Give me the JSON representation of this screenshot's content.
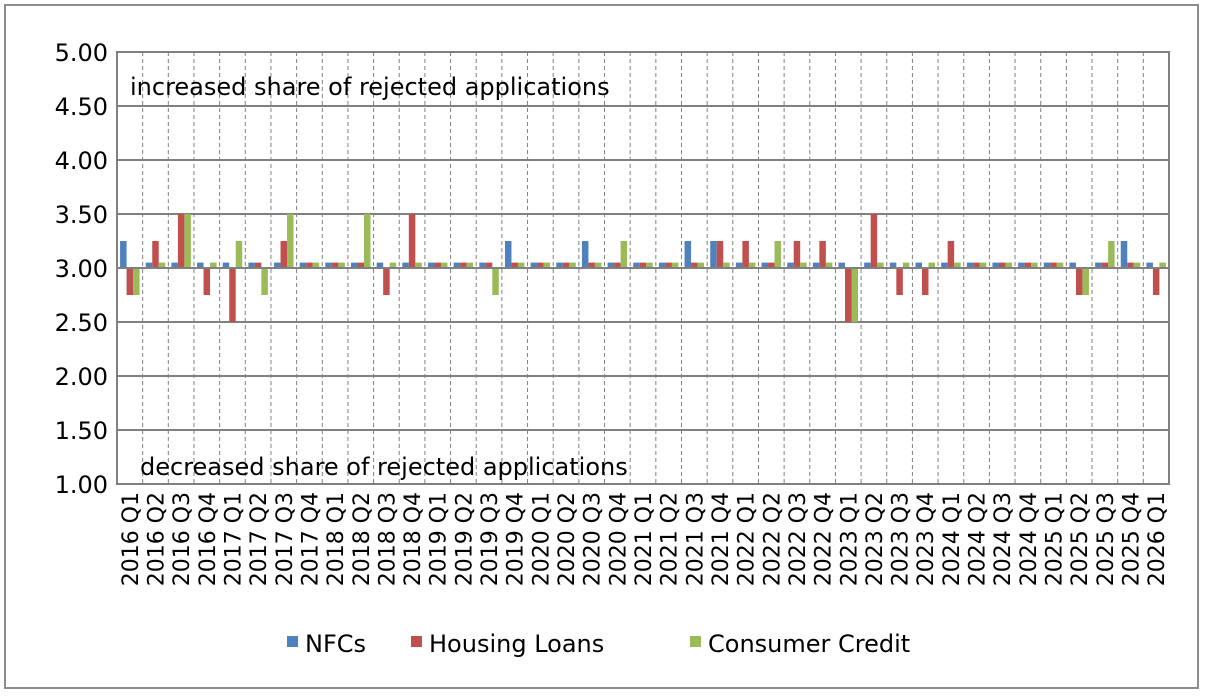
{
  "chart_data": {
    "type": "bar",
    "categories": [
      "2016 Q1",
      "2016 Q2",
      "2016 Q3",
      "2016 Q4",
      "2017 Q1",
      "2017 Q2",
      "2017 Q3",
      "2017 Q4",
      "2018 Q1",
      "2018 Q2",
      "2018 Q3",
      "2018 Q4",
      "2019 Q1",
      "2019 Q2",
      "2019 Q3",
      "2019 Q4",
      "2020 Q1",
      "2020 Q2",
      "2020 Q3",
      "2020 Q4",
      "2021 Q1",
      "2021 Q2",
      "2021 Q3",
      "2021 Q4",
      "2022 Q1",
      "2022 Q2",
      "2022 Q3",
      "2022 Q4",
      "2023 Q1",
      "2023 Q2",
      "2023 Q3",
      "2023 Q4",
      "2024 Q1",
      "2024 Q2",
      "2024 Q3",
      "2024 Q4",
      "2025 Q1",
      "2025 Q2",
      "2025 Q3",
      "2025 Q4",
      "2026 Q1"
    ],
    "series": [
      {
        "name": "NFCs",
        "color": "#4f81bd",
        "values": [
          3.25,
          3.05,
          3.05,
          3.05,
          3.05,
          3.05,
          3.05,
          3.05,
          3.05,
          3.05,
          3.05,
          3.05,
          3.05,
          3.05,
          3.05,
          3.25,
          3.05,
          3.05,
          3.25,
          3.05,
          3.05,
          3.05,
          3.25,
          3.25,
          3.05,
          3.05,
          3.05,
          3.05,
          3.05,
          3.05,
          3.05,
          3.05,
          3.05,
          3.05,
          3.05,
          3.05,
          3.05,
          3.05,
          3.05,
          3.25,
          3.05
        ]
      },
      {
        "name": "Housing Loans",
        "color": "#c0504d",
        "values": [
          2.75,
          3.25,
          3.5,
          2.75,
          2.5,
          3.05,
          3.25,
          3.05,
          3.05,
          3.05,
          2.75,
          3.5,
          3.05,
          3.05,
          3.05,
          3.05,
          3.05,
          3.05,
          3.05,
          3.05,
          3.05,
          3.05,
          3.05,
          3.25,
          3.25,
          3.05,
          3.25,
          3.25,
          2.5,
          3.5,
          2.75,
          2.75,
          3.25,
          3.05,
          3.05,
          3.05,
          3.05,
          2.75,
          3.05,
          3.05,
          2.75
        ]
      },
      {
        "name": "Consumer Credit",
        "color": "#9bbb59",
        "values": [
          2.75,
          3.05,
          3.5,
          3.05,
          3.25,
          2.75,
          3.5,
          3.05,
          3.05,
          3.5,
          3.05,
          3.05,
          3.05,
          3.05,
          2.75,
          3.05,
          3.05,
          3.05,
          3.05,
          3.25,
          3.05,
          3.05,
          3.05,
          3.05,
          3.05,
          3.25,
          3.05,
          3.05,
          2.5,
          3.05,
          3.05,
          3.05,
          3.05,
          3.05,
          3.05,
          3.05,
          3.05,
          2.75,
          3.25,
          3.05,
          3.05
        ]
      }
    ],
    "ylim": [
      1.0,
      5.0
    ],
    "yticks": [
      "1.00",
      "1.50",
      "2.00",
      "2.50",
      "3.00",
      "3.50",
      "4.00",
      "4.50",
      "5.00"
    ],
    "baseline": 3.0,
    "annotations": {
      "top": "increased  share of rejected applications",
      "bottom": "decreased share of rejected applications"
    },
    "legend_position": "bottom",
    "grid": true
  }
}
